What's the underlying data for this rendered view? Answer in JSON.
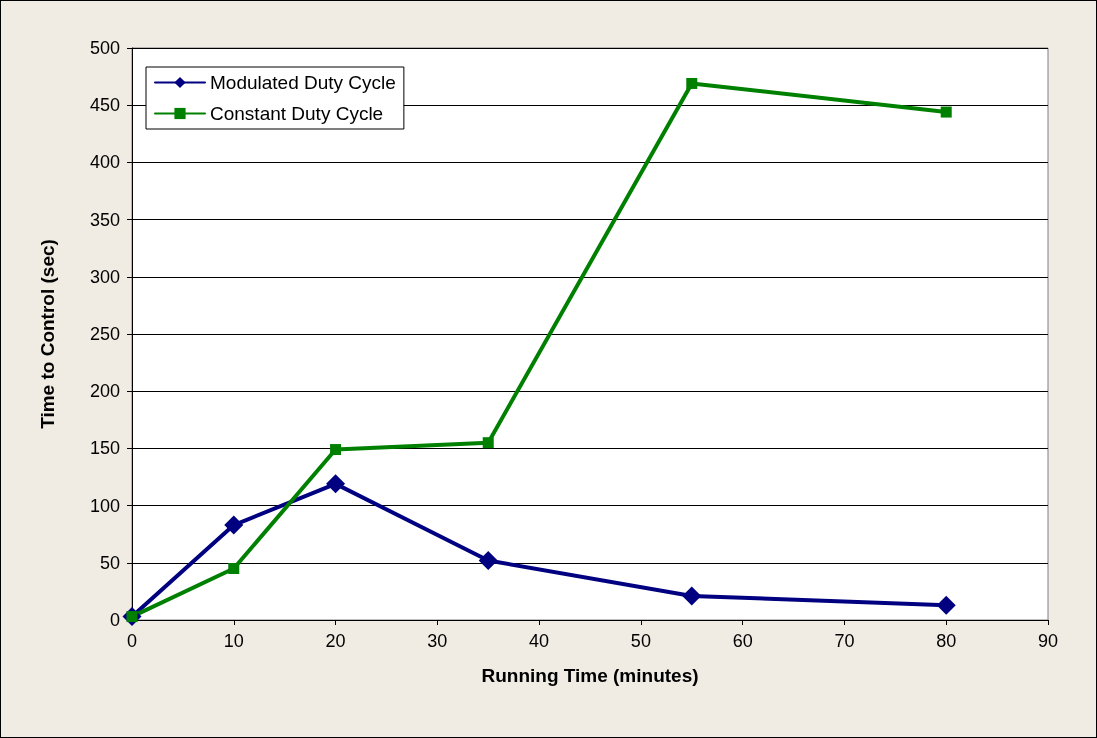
{
  "chart_data": {
    "type": "line",
    "xlabel": "Running Time (minutes)",
    "ylabel": "Time to Control (sec)",
    "xlim": [
      0,
      90
    ],
    "xticks": [
      0,
      10,
      20,
      30,
      40,
      50,
      60,
      70,
      80,
      90
    ],
    "ylim": [
      0,
      500
    ],
    "yticks": [
      0,
      50,
      100,
      150,
      200,
      250,
      300,
      350,
      400,
      450,
      500
    ],
    "grid": "y",
    "legend": "top left",
    "series": [
      {
        "name": "Modulated Duty Cycle",
        "color": "#000080",
        "marker": "diamond",
        "x": [
          0,
          10,
          20,
          35,
          55,
          80
        ],
        "values": [
          3,
          83,
          119,
          52,
          21,
          13
        ]
      },
      {
        "name": "Constant Duty Cycle",
        "color": "#008000",
        "marker": "square",
        "x": [
          0,
          10,
          20,
          35,
          55,
          80
        ],
        "values": [
          3,
          45,
          149,
          155,
          469,
          444
        ]
      }
    ]
  }
}
